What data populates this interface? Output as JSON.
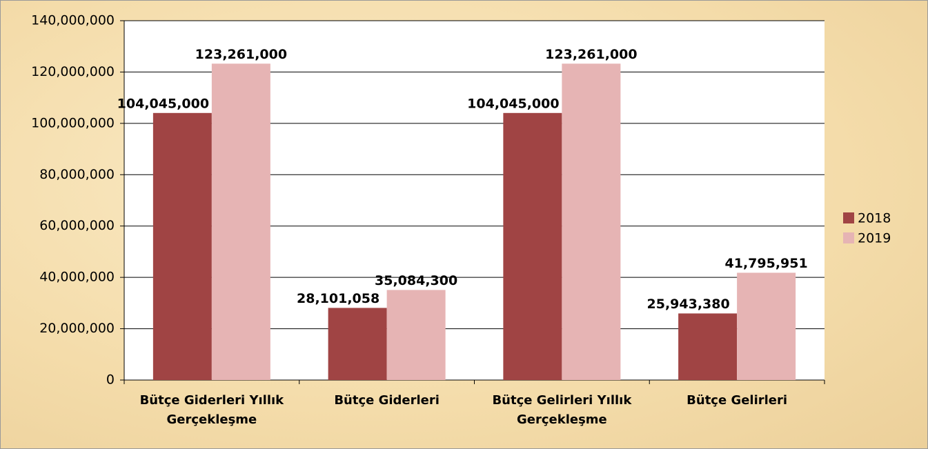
{
  "chart_data": {
    "type": "bar",
    "categories": [
      "Bütçe Giderleri Yıllık Gerçekleşme",
      "Bütçe Giderleri",
      "Bütçe Gelirleri Yıllık Gerçekleşme",
      "Bütçe Gelirleri"
    ],
    "series": [
      {
        "name": "2018",
        "color": "#a04444",
        "values": [
          104045000,
          28101058,
          104045000,
          25943380
        ],
        "value_labels": [
          "104,045,000",
          "28,101,058",
          "104,045,000",
          "25,943,380"
        ]
      },
      {
        "name": "2019",
        "color": "#e6b4b4",
        "values": [
          123261000,
          35084300,
          123261000,
          41795951
        ],
        "value_labels": [
          "123,261,000",
          "35,084,300",
          "123,261,000",
          "41,795,951"
        ]
      }
    ],
    "ylim": [
      0,
      140000000
    ],
    "yticks": [
      0,
      {
        "value": 20000000,
        "label": "20,000,000"
      },
      {
        "value": 40000000,
        "label": "40,000,000"
      },
      {
        "value": 60000000,
        "label": "60,000,000"
      },
      {
        "value": 80000000,
        "label": "80,000,000"
      },
      {
        "value": 100000000,
        "label": "100,000,000"
      },
      {
        "value": 120000000,
        "label": "120,000,000"
      },
      {
        "value": 140000000,
        "label": "140,000,000"
      }
    ],
    "grid": true,
    "legend": "right"
  }
}
